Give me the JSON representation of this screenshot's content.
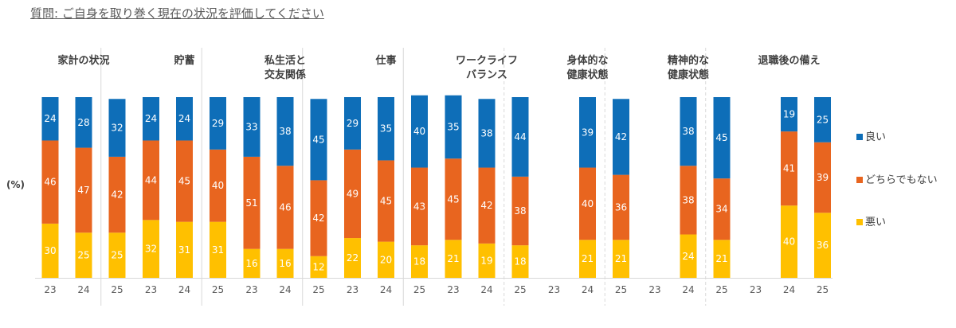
{
  "title": "質問: ご自身を取り巻く現在の状況を評価してください",
  "chart_data": {
    "type": "bar",
    "stacked": true,
    "ylabel": "(%)",
    "ylim": [
      0,
      100
    ],
    "years": [
      "23",
      "24",
      "25"
    ],
    "groups": [
      {
        "label": [
          "家計の状況"
        ],
        "bad": [
          30,
          25,
          25
        ],
        "neutral": [
          46,
          47,
          42
        ],
        "good": [
          24,
          28,
          32
        ]
      },
      {
        "label": [
          "貯蓄"
        ],
        "bad": [
          32,
          31,
          31
        ],
        "neutral": [
          44,
          45,
          40
        ],
        "good": [
          24,
          24,
          29
        ]
      },
      {
        "label": [
          "私生活と",
          "交友関係"
        ],
        "bad": [
          16,
          16,
          12
        ],
        "neutral": [
          51,
          46,
          42
        ],
        "good": [
          33,
          38,
          45
        ]
      },
      {
        "label": [
          "仕事"
        ],
        "bad": [
          22,
          20,
          18
        ],
        "neutral": [
          49,
          45,
          43
        ],
        "good": [
          29,
          35,
          40
        ]
      },
      {
        "label": [
          "ワークライフ",
          "バランス"
        ],
        "bad": [
          21,
          19,
          18
        ],
        "neutral": [
          45,
          42,
          38
        ],
        "good": [
          35,
          38,
          44
        ]
      },
      {
        "label": [
          "身体的な",
          "健康状態"
        ],
        "bad": [
          null,
          21,
          21
        ],
        "neutral": [
          null,
          40,
          36
        ],
        "good": [
          null,
          39,
          42
        ]
      },
      {
        "label": [
          "精神的な",
          "健康状態"
        ],
        "bad": [
          null,
          24,
          21
        ],
        "neutral": [
          null,
          38,
          34
        ],
        "good": [
          null,
          38,
          45
        ]
      },
      {
        "label": [
          "退職後の備え"
        ],
        "bad": [
          null,
          40,
          36
        ],
        "neutral": [
          null,
          41,
          39
        ],
        "good": [
          null,
          19,
          25
        ]
      }
    ],
    "legend": [
      {
        "key": "good",
        "label": "良い",
        "color": "#0e6eb8"
      },
      {
        "key": "neutral",
        "label": "どちらでもない",
        "color": "#e8651f"
      },
      {
        "key": "bad",
        "label": "悪い",
        "color": "#ffc000"
      }
    ],
    "legend_position": "right",
    "grid": false
  }
}
